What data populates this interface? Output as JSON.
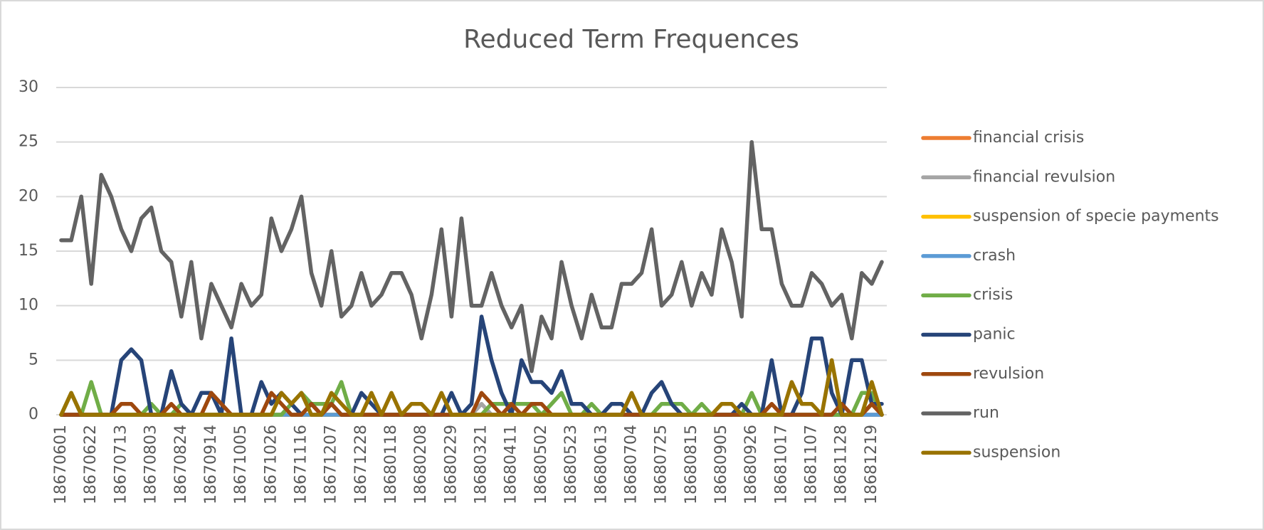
{
  "chart_data": {
    "type": "line",
    "title": "Reduced Term Frequences",
    "categories": [
      "18670601",
      null,
      null,
      "18670622",
      null,
      null,
      "18670713",
      null,
      null,
      "18670803",
      null,
      null,
      "18670824",
      null,
      null,
      "18670914",
      null,
      null,
      "18671005",
      null,
      null,
      "18671026",
      null,
      null,
      "18671116",
      null,
      null,
      "18671207",
      null,
      null,
      "18671228",
      null,
      null,
      "18680118",
      null,
      null,
      "18680208",
      null,
      null,
      "18680229",
      null,
      null,
      "18680321",
      null,
      null,
      "18680411",
      null,
      null,
      "18680502",
      null,
      null,
      "18680523",
      null,
      null,
      "18680613",
      null,
      null,
      "18680704",
      null,
      null,
      "18680725",
      null,
      null,
      "18680815",
      null,
      null,
      "18680905",
      null,
      null,
      "18680926",
      null,
      null,
      "18681017",
      null,
      null,
      "18681107",
      null,
      null,
      "18681128",
      null,
      null,
      "18681219",
      null
    ],
    "series": [
      {
        "name": "financial crisis",
        "color": "#ed7d31",
        "values": [
          0,
          0,
          0,
          0,
          0,
          0,
          0,
          0,
          0,
          0,
          0,
          0,
          0,
          0,
          0,
          0,
          0,
          0,
          0,
          0,
          0,
          0,
          0,
          0,
          0,
          0,
          0,
          0,
          0,
          0,
          0,
          0,
          0,
          0,
          0,
          0,
          0,
          0,
          0,
          0,
          0,
          0,
          0,
          0,
          0,
          0,
          0,
          0,
          0,
          0,
          0,
          0,
          0,
          0,
          0,
          0,
          0,
          0,
          0,
          0,
          0,
          0,
          0,
          0,
          0,
          0,
          0,
          0,
          0,
          0,
          0,
          0,
          0,
          0,
          0,
          0,
          0,
          0,
          0,
          0,
          0,
          0,
          0
        ]
      },
      {
        "name": "financial revulsion",
        "color": "#a5a5a5",
        "values": [
          0,
          0,
          0,
          0,
          0,
          0,
          0,
          0,
          0,
          0,
          0,
          0,
          0,
          0,
          0,
          0,
          0,
          0,
          0,
          0,
          0,
          0,
          0,
          0,
          0,
          0,
          0,
          0,
          0,
          0,
          0,
          0,
          0,
          0,
          0,
          0,
          0,
          0,
          0,
          0,
          0,
          0,
          1,
          0,
          0,
          0,
          0,
          0,
          0,
          0,
          0,
          0,
          0,
          0,
          0,
          0,
          0,
          0,
          0,
          0,
          0,
          0,
          0,
          0,
          0,
          0,
          0,
          0,
          0,
          0,
          0,
          0,
          0,
          0,
          0,
          0,
          0,
          0,
          0,
          0,
          0,
          0,
          0
        ]
      },
      {
        "name": "suspension of specie payments",
        "color": "#ffc000",
        "values": [
          0,
          0,
          0,
          0,
          0,
          0,
          0,
          0,
          0,
          0,
          0,
          0,
          0,
          0,
          0,
          0,
          0,
          0,
          0,
          0,
          0,
          0,
          0,
          0,
          0,
          0,
          0,
          0,
          0,
          0,
          0,
          0,
          0,
          0,
          0,
          0,
          0,
          0,
          0,
          0,
          0,
          0,
          0,
          0,
          0,
          0,
          0,
          0,
          0,
          0,
          0,
          0,
          0,
          0,
          0,
          0,
          0,
          0,
          0,
          0,
          0,
          0,
          0,
          0,
          0,
          0,
          0,
          0,
          0,
          0,
          0,
          0,
          0,
          0,
          0,
          0,
          0,
          0,
          0,
          0,
          0,
          1,
          0
        ]
      },
      {
        "name": "crash",
        "color": "#5b9bd5",
        "values": [
          0,
          0,
          0,
          0,
          0,
          0,
          0,
          0,
          0,
          0,
          0,
          0,
          0,
          0,
          0,
          0,
          0,
          0,
          0,
          0,
          0,
          0,
          0,
          0,
          0,
          0,
          0,
          0,
          0,
          0,
          0,
          0,
          0,
          0,
          0,
          0,
          0,
          0,
          0,
          0,
          0,
          0,
          0,
          0,
          0,
          0,
          0,
          0,
          0,
          0,
          0,
          0,
          0,
          0,
          0,
          0,
          0,
          0,
          0,
          0,
          0,
          0,
          0,
          0,
          0,
          0,
          0,
          0,
          0,
          0,
          0,
          0,
          0,
          0,
          0,
          0,
          0,
          0,
          0,
          0,
          0,
          0,
          0
        ]
      },
      {
        "name": "crisis",
        "color": "#70ad47",
        "values": [
          0,
          2,
          0,
          3,
          0,
          0,
          0,
          0,
          0,
          1,
          0,
          0,
          1,
          0,
          0,
          0,
          0,
          0,
          0,
          0,
          0,
          0,
          0,
          1,
          2,
          1,
          1,
          1,
          3,
          0,
          0,
          0,
          0,
          0,
          0,
          0,
          0,
          0,
          0,
          0,
          0,
          0,
          0,
          1,
          1,
          1,
          1,
          1,
          0,
          1,
          2,
          0,
          0,
          1,
          0,
          0,
          0,
          0,
          0,
          0,
          1,
          1,
          1,
          0,
          1,
          0,
          0,
          0,
          0,
          2,
          0,
          0,
          0,
          0,
          0,
          0,
          0,
          0,
          0,
          0,
          2,
          2,
          0
        ]
      },
      {
        "name": "panic",
        "color": "#264478",
        "values": [
          0,
          0,
          0,
          0,
          0,
          0,
          5,
          6,
          5,
          0,
          0,
          4,
          1,
          0,
          2,
          2,
          0,
          7,
          0,
          0,
          3,
          1,
          2,
          1,
          0,
          1,
          0,
          1,
          0,
          0,
          2,
          1,
          0,
          0,
          0,
          0,
          0,
          0,
          0,
          2,
          0,
          1,
          9,
          5,
          2,
          0,
          5,
          3,
          3,
          2,
          4,
          1,
          1,
          0,
          0,
          1,
          1,
          0,
          0,
          2,
          3,
          1,
          0,
          0,
          0,
          0,
          0,
          0,
          1,
          0,
          0,
          5,
          0,
          0,
          2,
          7,
          7,
          2,
          0,
          5,
          5,
          1,
          1
        ]
      },
      {
        "name": "revulsion",
        "color": "#9e480e",
        "values": [
          0,
          0,
          0,
          0,
          0,
          0,
          1,
          1,
          0,
          0,
          0,
          1,
          0,
          0,
          0,
          2,
          1,
          0,
          0,
          0,
          0,
          2,
          1,
          0,
          0,
          1,
          0,
          1,
          0,
          0,
          0,
          0,
          0,
          0,
          0,
          0,
          0,
          0,
          0,
          0,
          0,
          0,
          2,
          1,
          0,
          1,
          0,
          1,
          1,
          0,
          0,
          0,
          0,
          0,
          0,
          0,
          0,
          0,
          0,
          0,
          0,
          0,
          0,
          0,
          0,
          0,
          0,
          0,
          0,
          0,
          0,
          1,
          0,
          0,
          0,
          0,
          0,
          0,
          1,
          0,
          0,
          1,
          0
        ]
      },
      {
        "name": "run",
        "color": "#636363",
        "values": [
          16,
          16,
          20,
          12,
          22,
          20,
          17,
          15,
          18,
          19,
          15,
          14,
          9,
          14,
          7,
          12,
          10,
          8,
          12,
          10,
          11,
          18,
          15,
          17,
          20,
          13,
          10,
          15,
          9,
          10,
          13,
          10,
          11,
          13,
          13,
          11,
          7,
          11,
          17,
          9,
          18,
          10,
          10,
          13,
          10,
          8,
          10,
          4,
          9,
          7,
          14,
          10,
          7,
          11,
          8,
          8,
          12,
          12,
          13,
          17,
          10,
          11,
          14,
          10,
          13,
          11,
          17,
          14,
          9,
          25,
          17,
          17,
          12,
          10,
          10,
          13,
          12,
          10,
          11,
          7,
          13,
          12,
          14
        ]
      },
      {
        "name": "suspension",
        "color": "#997300",
        "values": [
          0,
          2,
          0,
          0,
          0,
          0,
          0,
          0,
          0,
          0,
          0,
          0,
          0,
          0,
          0,
          0,
          0,
          0,
          0,
          0,
          0,
          0,
          2,
          1,
          2,
          0,
          0,
          2,
          1,
          0,
          0,
          2,
          0,
          2,
          0,
          1,
          1,
          0,
          2,
          0,
          0,
          0,
          0,
          0,
          0,
          0,
          0,
          0,
          0,
          0,
          0,
          0,
          0,
          0,
          0,
          0,
          0,
          2,
          0,
          0,
          0,
          0,
          0,
          0,
          0,
          0,
          1,
          1,
          0,
          0,
          0,
          0,
          0,
          3,
          1,
          1,
          0,
          5,
          0,
          0,
          0,
          3,
          0
        ]
      }
    ],
    "ylim": [
      0,
      30
    ],
    "yticks": [
      0,
      5,
      10,
      15,
      20,
      25,
      30
    ],
    "grid": true,
    "legend": "right"
  }
}
